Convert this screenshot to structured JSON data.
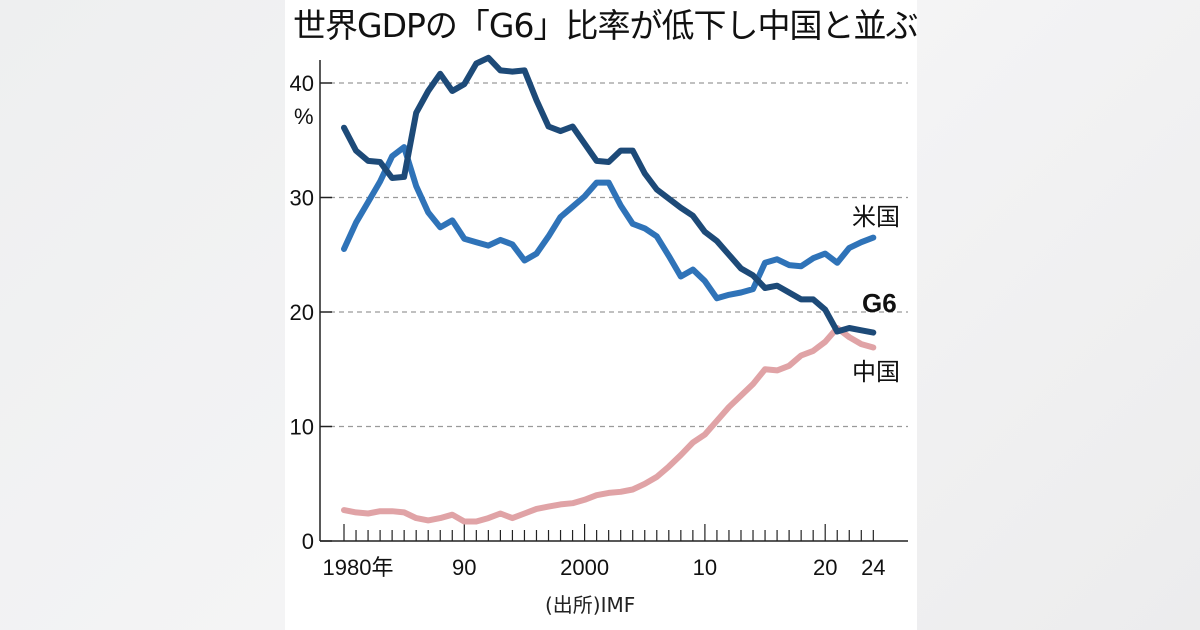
{
  "title": "世界GDPの「G6」比率が低下し中国と並ぶ",
  "source": "(出所)IMF",
  "colors": {
    "g6": "#1d4a78",
    "us": "#2f73b8",
    "china": "#e0a3a6",
    "grid": "#9a9a9a",
    "axis": "#222222"
  },
  "chart_data": {
    "type": "line",
    "title": "世界GDPの「G6」比率が低下し中国と並ぶ",
    "xlabel": "",
    "ylabel": "%",
    "ylim": [
      0,
      42
    ],
    "xlim": [
      1980,
      2024
    ],
    "grid": true,
    "yticks": [
      0,
      10,
      20,
      30,
      40
    ],
    "ytick_labels": [
      "0",
      "10",
      "20",
      "30",
      "40"
    ],
    "yunit_label": "%",
    "xticks": [
      1980,
      1990,
      2000,
      2010,
      2020,
      2024
    ],
    "xtick_labels": [
      "1980年",
      "90",
      "2000",
      "10",
      "20",
      "24"
    ],
    "source": "(出所)IMF",
    "x": [
      1980,
      1981,
      1982,
      1983,
      1984,
      1985,
      1986,
      1987,
      1988,
      1989,
      1990,
      1991,
      1992,
      1993,
      1994,
      1995,
      1996,
      1997,
      1998,
      1999,
      2000,
      2001,
      2002,
      2003,
      2004,
      2005,
      2006,
      2007,
      2008,
      2009,
      2010,
      2011,
      2012,
      2013,
      2014,
      2015,
      2016,
      2017,
      2018,
      2019,
      2020,
      2021,
      2022,
      2023,
      2024
    ],
    "series": [
      {
        "name": "G6",
        "label": "G6",
        "values": [
          36.1,
          34.1,
          33.2,
          33.1,
          31.7,
          31.8,
          37.4,
          39.3,
          40.8,
          39.3,
          39.9,
          41.7,
          42.2,
          41.1,
          41.0,
          41.1,
          38.5,
          36.2,
          35.8,
          36.2,
          34.7,
          33.2,
          33.1,
          34.1,
          34.1,
          32.1,
          30.7,
          29.9,
          29.1,
          28.4,
          27.0,
          26.2,
          25.0,
          23.8,
          23.2,
          22.1,
          22.3,
          21.7,
          21.1,
          21.1,
          20.2,
          18.3,
          18.6,
          18.4,
          18.2
        ]
      },
      {
        "name": "米国",
        "label": "米国",
        "values": [
          25.5,
          27.8,
          29.6,
          31.4,
          33.6,
          34.4,
          31.0,
          28.7,
          27.4,
          28.0,
          26.4,
          26.1,
          25.8,
          26.3,
          25.9,
          24.5,
          25.1,
          26.6,
          28.3,
          29.2,
          30.1,
          31.3,
          31.3,
          29.3,
          27.7,
          27.3,
          26.6,
          24.9,
          23.1,
          23.7,
          22.7,
          21.2,
          21.5,
          21.7,
          22.0,
          24.3,
          24.6,
          24.1,
          24.0,
          24.7,
          25.1,
          24.3,
          25.6,
          26.1,
          26.5
        ]
      },
      {
        "name": "中国",
        "label": "中国",
        "values": [
          2.7,
          2.5,
          2.4,
          2.6,
          2.6,
          2.5,
          2.0,
          1.8,
          2.0,
          2.3,
          1.7,
          1.7,
          2.0,
          2.4,
          2.0,
          2.4,
          2.8,
          3.0,
          3.2,
          3.3,
          3.6,
          4.0,
          4.2,
          4.3,
          4.5,
          5.0,
          5.6,
          6.5,
          7.5,
          8.6,
          9.3,
          10.5,
          11.7,
          12.7,
          13.7,
          15.0,
          14.9,
          15.3,
          16.2,
          16.6,
          17.4,
          18.6,
          17.8,
          17.2,
          16.9
        ]
      }
    ]
  }
}
